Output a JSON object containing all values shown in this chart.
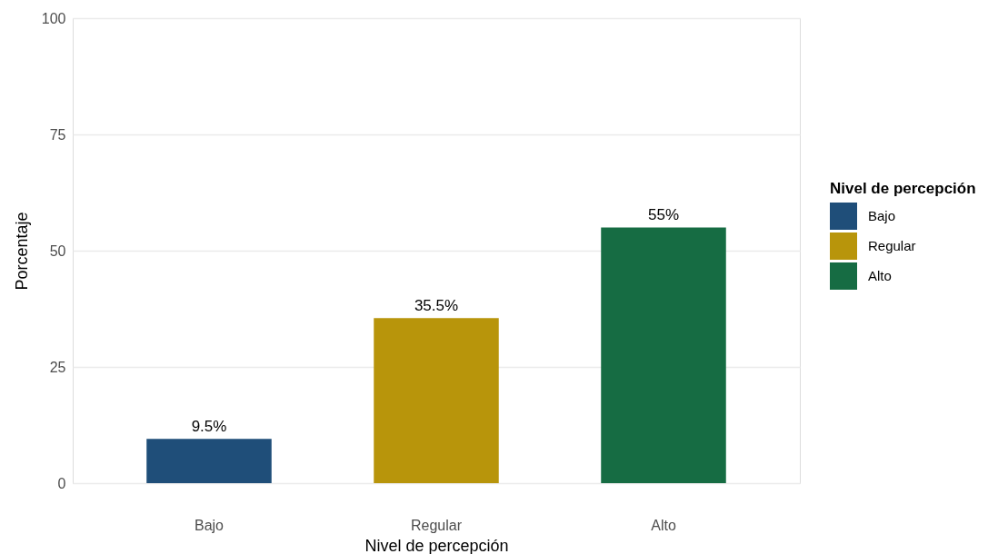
{
  "chart_data": {
    "type": "bar",
    "xlabel": "Nivel de percepción",
    "ylabel": "Porcentaje",
    "legend_title": "Nivel de percepción",
    "categories": [
      "Bajo",
      "Regular",
      "Alto"
    ],
    "series": [
      {
        "name": "Bajo",
        "color": "#1f4e79",
        "values": [
          9.5,
          null,
          null
        ],
        "value_labels": [
          "9.5%",
          null,
          null
        ]
      },
      {
        "name": "Regular",
        "color": "#b8950b",
        "values": [
          null,
          35.5,
          null
        ],
        "value_labels": [
          null,
          "35.5%",
          null
        ]
      },
      {
        "name": "Alto",
        "color": "#166c43",
        "values": [
          null,
          null,
          55
        ],
        "value_labels": [
          null,
          null,
          "55%"
        ]
      }
    ],
    "stacked": true,
    "ylim": [
      0,
      100
    ],
    "yticks": [
      0,
      25,
      50,
      75,
      100
    ],
    "grid": "y",
    "legend": "right"
  }
}
